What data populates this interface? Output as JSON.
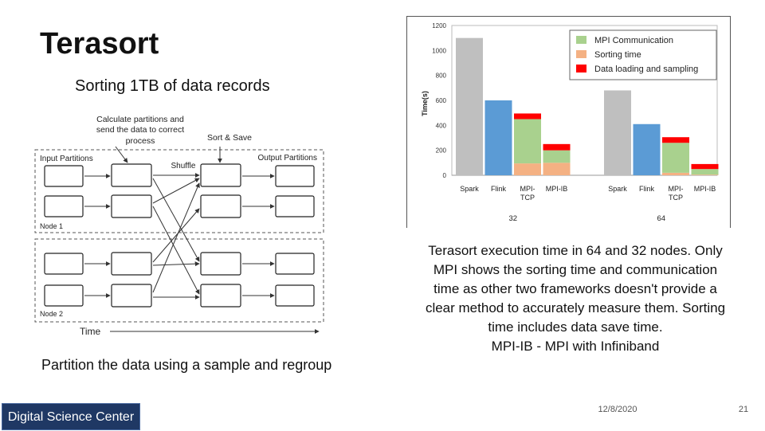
{
  "slide": {
    "title": "Terasort",
    "subtitle": "Sorting 1TB of data records",
    "diagram_caption": "Partition the data using a sample and regroup",
    "chart_caption_lines": [
      "Terasort execution time in 64 and 32 nodes. Only",
      "MPI shows the sorting time and communication",
      "time as other two frameworks doesn't provide a",
      "clear method to accurately measure them. Sorting",
      "time includes data save time.",
      "MPI-IB - MPI with Infiniband"
    ],
    "footer": {
      "org": "Digital Science Center",
      "date": "12/8/2020",
      "page": "21"
    }
  },
  "diagram": {
    "annotation_partition_lines": [
      "Calculate partitions and",
      "send the data to correct",
      "process"
    ],
    "annotation_sort_save": "Sort & Save",
    "input_label": "Input Partitions",
    "output_label": "Output Partitions",
    "shuffle_label": "Shuffle",
    "node1_label": "Node 1",
    "node2_label": "Node 2",
    "time_label": "Time"
  },
  "chart_data": {
    "type": "bar",
    "stacked": true,
    "ylabel": "Time(s)",
    "ylim": [
      0,
      1200
    ],
    "yticks": [
      0,
      200,
      400,
      600,
      800,
      1000,
      1200
    ],
    "groups": [
      {
        "label": "32",
        "bars": [
          {
            "label": "Spark",
            "total": 1100
          },
          {
            "label": "Flink",
            "total": 600
          },
          {
            "label_lines": [
              "MPI-",
              "TCP"
            ],
            "segments": {
              "sorting": 95,
              "communication": 355,
              "loading": 45
            }
          },
          {
            "label": "MPI-IB",
            "segments": {
              "sorting": 100,
              "communication": 100,
              "loading": 50
            }
          }
        ]
      },
      {
        "label": "64",
        "bars": [
          {
            "label": "Spark",
            "total": 680
          },
          {
            "label": "Flink",
            "total": 410
          },
          {
            "label_lines": [
              "MPI-",
              "TCP"
            ],
            "segments": {
              "sorting": 20,
              "communication": 240,
              "loading": 45
            }
          },
          {
            "label": "MPI-IB",
            "segments": {
              "sorting": 5,
              "communication": 45,
              "loading": 40
            }
          }
        ]
      }
    ],
    "legend": [
      {
        "key": "communication",
        "name": "MPI Communication",
        "color": "#a9d18e"
      },
      {
        "key": "sorting",
        "name": "Sorting time",
        "color": "#f4b183"
      },
      {
        "key": "loading",
        "name": "Data loading and sampling",
        "color": "#ff0000"
      }
    ],
    "legend_position": "top-right",
    "colors": {
      "Spark": "#bfbfbf",
      "Flink": "#5b9bd5"
    }
  }
}
